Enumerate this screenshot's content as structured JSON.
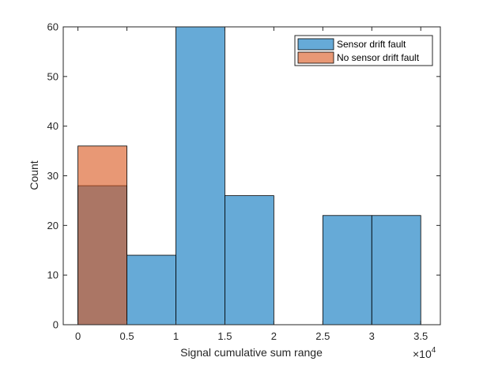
{
  "chart_data": {
    "type": "bar",
    "subtype": "histogram",
    "xlabel": "Signal cumulative sum range",
    "ylabel": "Count",
    "xlim": [
      -0.15,
      3.7
    ],
    "ylim": [
      0,
      60
    ],
    "x_multiplier_base": "×10",
    "x_multiplier_exp": "4",
    "xticks": [
      0,
      0.5,
      1,
      1.5,
      2,
      2.5,
      3,
      3.5
    ],
    "xtick_labels": [
      "0",
      "0.5",
      "1",
      "1.5",
      "2",
      "2.5",
      "3",
      "3.5"
    ],
    "yticks": [
      0,
      10,
      20,
      30,
      40,
      50,
      60
    ],
    "ytick_labels": [
      "0",
      "10",
      "20",
      "30",
      "40",
      "50",
      "60"
    ],
    "grid": false,
    "legend_position": "top-right",
    "series": [
      {
        "name": "Sensor drift fault",
        "color": "#0072BD",
        "bins": [
          {
            "start": 0,
            "end": 0.5,
            "count": 28
          },
          {
            "start": 0.5,
            "end": 1,
            "count": 14
          },
          {
            "start": 1,
            "end": 1.5,
            "count": 60
          },
          {
            "start": 1.5,
            "end": 2,
            "count": 26
          },
          {
            "start": 2,
            "end": 2.5,
            "count": 0
          },
          {
            "start": 2.5,
            "end": 3,
            "count": 22
          },
          {
            "start": 3,
            "end": 3.5,
            "count": 22
          }
        ]
      },
      {
        "name": "No sensor drift fault",
        "color": "#D95319",
        "bins": [
          {
            "start": 0,
            "end": 0.5,
            "count": 36
          }
        ]
      }
    ]
  }
}
